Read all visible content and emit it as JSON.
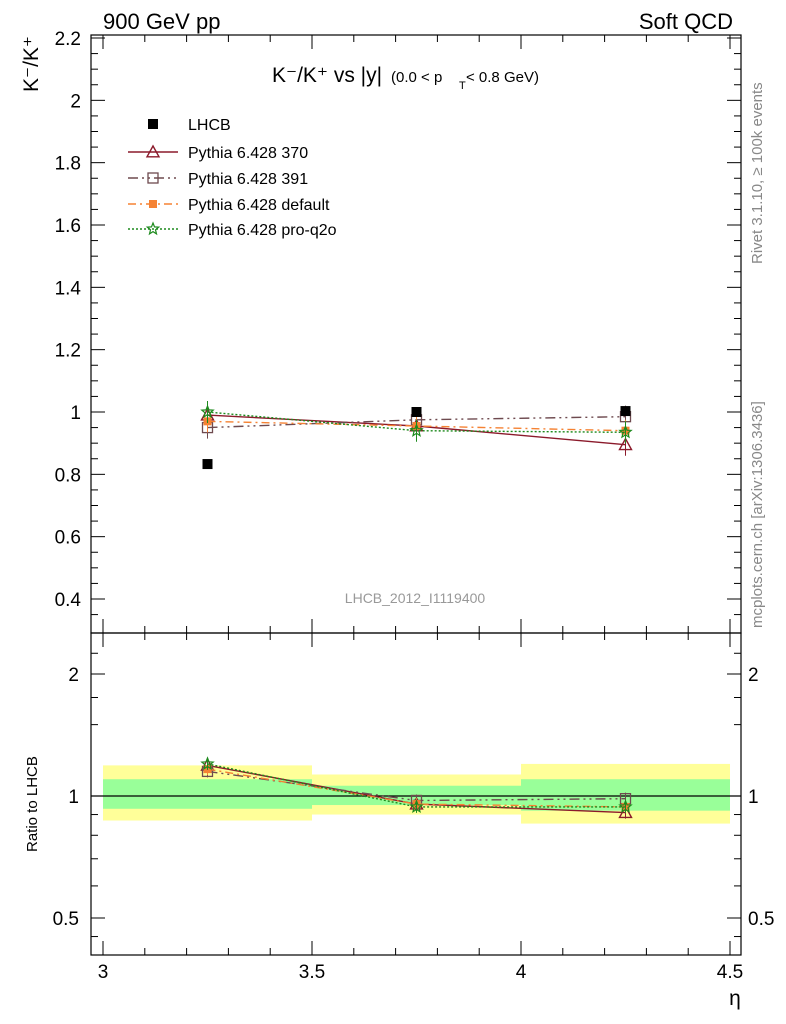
{
  "header": {
    "left": "900 GeV pp",
    "right": "Soft QCD"
  },
  "side_labels": {
    "rivet": "Rivet 3.1.10, ≥ 100k events",
    "mcplots": "mcplots.cern.ch [arXiv:1306.3436]"
  },
  "watermark": "LHCB_2012_I1119400",
  "colors": {
    "lhcb": "#000000",
    "p370": "#8b1a2b",
    "p391": "#6e4a4f",
    "default": "#f58233",
    "proq2o": "#1d8a1d",
    "band_outer": "#ffff99",
    "band_inner": "#99ff99"
  },
  "chart_data": [
    {
      "type": "scatter",
      "title_main": "K⁻/K⁺ vs |y|",
      "title_range": "(0.0 < p",
      "title_sub": "T",
      "title_end": " < 0.8 GeV)",
      "ylabel": "K⁻/K⁺",
      "xlabel": "",
      "xlim": [
        3.0,
        4.5
      ],
      "ylim": [
        0.3,
        2.2
      ],
      "yticks": [
        0.4,
        0.6,
        0.8,
        1,
        1.2,
        1.4,
        1.6,
        1.8,
        2,
        2.2
      ],
      "ytick_labels": [
        "0.4",
        "0.6",
        "0.8",
        "1",
        "1.2",
        "1.4",
        "1.6",
        "1.8",
        "2",
        "2.2"
      ],
      "x": [
        3.25,
        3.75,
        4.25
      ],
      "series": [
        {
          "key": "lhcb",
          "name": "LHCB",
          "values": [
            0.833,
            1.0,
            1.003
          ]
        },
        {
          "key": "p370",
          "name": "Pythia 6.428 370",
          "values": [
            0.99,
            0.955,
            0.895
          ]
        },
        {
          "key": "p391",
          "name": "Pythia 6.428 391",
          "values": [
            0.95,
            0.975,
            0.985
          ]
        },
        {
          "key": "default",
          "name": "Pythia 6.428 default",
          "values": [
            0.97,
            0.955,
            0.94
          ]
        },
        {
          "key": "proq2o",
          "name": "Pythia 6.428 pro-q2o",
          "values": [
            1.0,
            0.94,
            0.935
          ]
        }
      ],
      "legend_position": "top-left"
    },
    {
      "type": "line",
      "ylabel": "Ratio to LHCB",
      "xlabel": "η",
      "xlim": [
        3.0,
        4.5
      ],
      "ylim": [
        0.4,
        2.3
      ],
      "log_y": true,
      "yticks": [
        0.5,
        1,
        2
      ],
      "ytick_labels": [
        "0.5",
        "1",
        "2"
      ],
      "xticks": [
        3,
        3.5,
        4,
        4.5
      ],
      "xtick_labels": [
        "3",
        "3.5",
        "4",
        "4.5"
      ],
      "x": [
        3.25,
        3.75,
        4.25
      ],
      "bins": [
        [
          3.0,
          3.5
        ],
        [
          3.5,
          4.0
        ],
        [
          4.0,
          4.5
        ]
      ],
      "band_outer": [
        [
          0.87,
          1.19
        ],
        [
          0.9,
          1.13
        ],
        [
          0.855,
          1.2
        ]
      ],
      "band_inner": [
        [
          0.93,
          1.1
        ],
        [
          0.95,
          1.06
        ],
        [
          0.92,
          1.1
        ]
      ],
      "series": [
        {
          "key": "p370",
          "values": [
            1.19,
            0.955,
            0.91
          ]
        },
        {
          "key": "p391",
          "values": [
            1.15,
            0.975,
            0.985
          ]
        },
        {
          "key": "default",
          "values": [
            1.165,
            0.955,
            0.94
          ]
        },
        {
          "key": "proq2o",
          "values": [
            1.2,
            0.94,
            0.94
          ]
        }
      ]
    }
  ]
}
